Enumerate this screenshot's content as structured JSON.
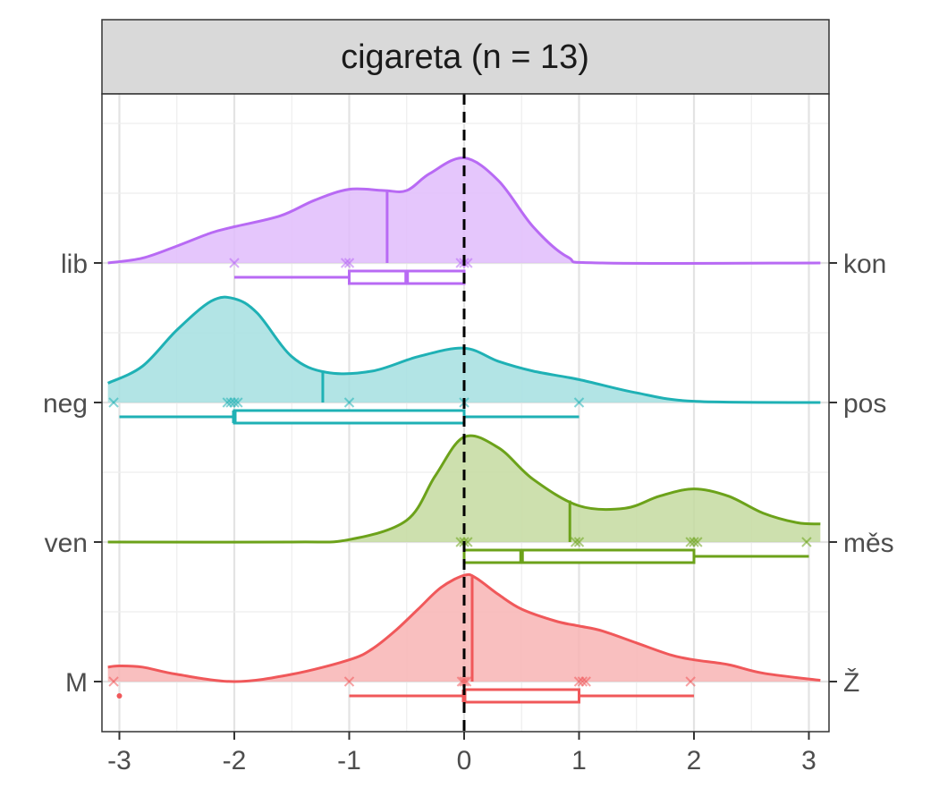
{
  "chart_data": {
    "type": "ridgeline-boxplot",
    "title": "cigareta (n = 13)",
    "xlim": [
      -3.1,
      3.1
    ],
    "x_ticks": [
      -3,
      -2,
      -1,
      0,
      1,
      2,
      3
    ],
    "x_tick_labels": [
      "-3",
      "-2",
      "-1",
      "0",
      "1",
      "2",
      "3"
    ],
    "reference_line_x": 0,
    "grid": true,
    "rows": [
      {
        "left_label": "M",
        "right_label": "Ž",
        "color": "#F0585A",
        "fill": "#F8B4B4",
        "mean": 0.07,
        "density_x": [
          -3.1,
          -3.0,
          -2.8,
          -2.5,
          -2.0,
          -1.5,
          -1.0,
          -0.8,
          -0.6,
          -0.4,
          -0.2,
          0.0,
          0.1,
          0.3,
          0.5,
          0.8,
          1.0,
          1.2,
          1.5,
          1.8,
          2.0,
          2.3,
          2.6,
          3.1
        ],
        "density_y": [
          0.12,
          0.13,
          0.12,
          0.06,
          0.0,
          0.06,
          0.18,
          0.27,
          0.42,
          0.6,
          0.78,
          0.88,
          0.86,
          0.72,
          0.6,
          0.5,
          0.46,
          0.42,
          0.32,
          0.22,
          0.18,
          0.14,
          0.07,
          0.01
        ],
        "points": [
          -3.05,
          -1.0,
          -0.02,
          0.0,
          0.02,
          1.0,
          1.03,
          1.06,
          1.97
        ],
        "box": {
          "whisker_min": -1,
          "q1": 0,
          "median": 0,
          "q3": 1,
          "whisker_max": 2
        },
        "outliers": [
          -3.0
        ]
      },
      {
        "left_label": "ven",
        "right_label": "měs",
        "color": "#6CA21A",
        "fill": "#C4DBA0",
        "mean": 0.92,
        "density_x": [
          -3.1,
          -1.5,
          -1.0,
          -0.5,
          -0.25,
          0.0,
          0.3,
          0.6,
          1.0,
          1.4,
          1.7,
          2.0,
          2.3,
          2.6,
          2.9,
          3.1
        ],
        "density_y": [
          0.0,
          0.0,
          0.02,
          0.18,
          0.55,
          0.87,
          0.78,
          0.52,
          0.3,
          0.28,
          0.38,
          0.44,
          0.38,
          0.24,
          0.16,
          0.15
        ],
        "points": [
          -0.03,
          0.0,
          0.03,
          0.97,
          1.0,
          1.97,
          2.0,
          2.03,
          2.98
        ],
        "box": {
          "whisker_min": 0,
          "q1": 0,
          "median": 0.5,
          "q3": 2,
          "whisker_max": 3
        },
        "outliers": []
      },
      {
        "left_label": "neg",
        "right_label": "pos",
        "color": "#1FB1B5",
        "fill": "#A4DFE0",
        "mean": -1.23,
        "density_x": [
          -3.1,
          -2.8,
          -2.5,
          -2.2,
          -2.0,
          -1.8,
          -1.5,
          -1.2,
          -0.8,
          -0.4,
          0.0,
          0.3,
          0.6,
          1.0,
          1.5,
          2.0,
          3.1
        ],
        "density_y": [
          0.16,
          0.3,
          0.6,
          0.84,
          0.86,
          0.74,
          0.38,
          0.25,
          0.26,
          0.38,
          0.45,
          0.34,
          0.26,
          0.19,
          0.08,
          0.01,
          0.0
        ],
        "points": [
          -3.05,
          -2.06,
          -2.03,
          -2.0,
          -1.97,
          -1.0,
          0.0,
          1.0
        ],
        "box": {
          "whisker_min": -3,
          "q1": -2,
          "median": -2,
          "q3": 0,
          "whisker_max": 1
        },
        "outliers": []
      },
      {
        "left_label": "lib",
        "right_label": "kon",
        "color": "#B86AF4",
        "fill": "#E0BCFB",
        "mean": -0.67,
        "density_x": [
          -3.1,
          -2.8,
          -2.5,
          -2.2,
          -2.0,
          -1.6,
          -1.3,
          -1.0,
          -0.7,
          -0.5,
          -0.3,
          0.0,
          0.3,
          0.6,
          0.9,
          1.2,
          3.1
        ],
        "density_y": [
          0.0,
          0.04,
          0.14,
          0.25,
          0.3,
          0.39,
          0.52,
          0.61,
          0.6,
          0.6,
          0.74,
          0.87,
          0.68,
          0.3,
          0.05,
          0.0,
          0.0
        ],
        "points": [
          -2.0,
          -1.03,
          -1.0,
          -0.03,
          0.0,
          0.03
        ],
        "box": {
          "whisker_min": -2,
          "q1": -1,
          "median": -0.5,
          "q3": 0,
          "whisker_max": 0
        },
        "outliers": []
      }
    ]
  }
}
